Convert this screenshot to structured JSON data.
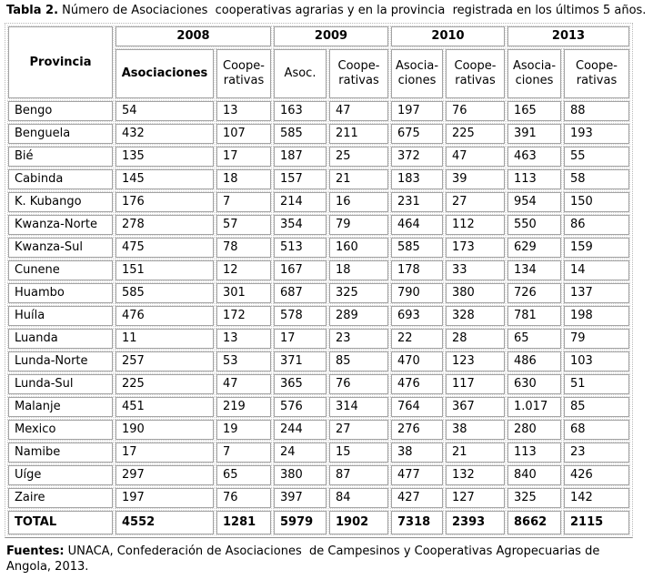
{
  "title": {
    "label": "Tabla 2.",
    "text": " Número de Asociaciones  cooperativas agrarias y en la provincia  registrada en los últimos 5 años."
  },
  "table": {
    "provincia_header": "Provincia",
    "year_groups": [
      {
        "year": "2008",
        "cols": [
          "Asociaciones",
          "Coope-rativas"
        ]
      },
      {
        "year": "2009",
        "cols": [
          "Asoc.",
          "Coope-rativas"
        ]
      },
      {
        "year": "2010",
        "cols": [
          "Asocia-ciones",
          "Coope-rativas"
        ]
      },
      {
        "year": "2013",
        "cols": [
          "Asocia-ciones",
          "Coope-rativas"
        ]
      }
    ],
    "rows": [
      {
        "name": "Bengo",
        "values": [
          "54",
          "13",
          "163",
          "47",
          "197",
          "76",
          "165",
          "88"
        ]
      },
      {
        "name": "Benguela",
        "values": [
          "432",
          "107",
          "585",
          "211",
          "675",
          "225",
          "391",
          "193"
        ]
      },
      {
        "name": "Bié",
        "values": [
          "135",
          "17",
          "187",
          "25",
          "372",
          "47",
          "463",
          "55"
        ]
      },
      {
        "name": "Cabinda",
        "values": [
          "145",
          "18",
          "157",
          "21",
          "183",
          "39",
          "113",
          "58"
        ]
      },
      {
        "name": "K. Kubango",
        "values": [
          "176",
          "7",
          "214",
          "16",
          "231",
          "27",
          "954",
          "150"
        ]
      },
      {
        "name": "Kwanza-Norte",
        "values": [
          "278",
          "57",
          "354",
          "79",
          "464",
          "112",
          "550",
          "86"
        ]
      },
      {
        "name": "Kwanza-Sul",
        "values": [
          "475",
          "78",
          "513",
          "160",
          "585",
          "173",
          "629",
          "159"
        ]
      },
      {
        "name": "Cunene",
        "values": [
          "151",
          "12",
          "167",
          "18",
          "178",
          "33",
          "134",
          "14"
        ]
      },
      {
        "name": "Huambo",
        "values": [
          "585",
          "301",
          "687",
          "325",
          "790",
          "380",
          "726",
          "137"
        ]
      },
      {
        "name": "Huíla",
        "values": [
          "476",
          "172",
          "578",
          "289",
          "693",
          "328",
          "781",
          "198"
        ]
      },
      {
        "name": "Luanda",
        "values": [
          "11",
          "13",
          "17",
          "23",
          "22",
          "28",
          "65",
          "79"
        ]
      },
      {
        "name": "Lunda-Norte",
        "values": [
          "257",
          "53",
          "371",
          "85",
          "470",
          "123",
          "486",
          "103"
        ]
      },
      {
        "name": "Lunda-Sul",
        "values": [
          "225",
          "47",
          "365",
          "76",
          "476",
          "117",
          "630",
          "51"
        ]
      },
      {
        "name": "Malanje",
        "values": [
          "451",
          "219",
          "576",
          "314",
          "764",
          "367",
          "1.017",
          "85"
        ]
      },
      {
        "name": "Mexico",
        "values": [
          "190",
          "19",
          "244",
          "27",
          "276",
          "38",
          "280",
          "68"
        ]
      },
      {
        "name": "Namibe",
        "values": [
          "17",
          "7",
          "24",
          "15",
          "38",
          "21",
          "113",
          "23"
        ]
      },
      {
        "name": "Uíge",
        "values": [
          "297",
          "65",
          "380",
          "87",
          "477",
          "132",
          "840",
          "426"
        ]
      },
      {
        "name": "Zaire",
        "values": [
          "197",
          "76",
          "397",
          "84",
          "427",
          "127",
          "325",
          "142"
        ]
      },
      {
        "name": "TOTAL",
        "values": [
          "4552",
          "1281",
          "5979",
          "1902",
          "7318",
          "2393",
          "8662",
          "2115"
        ],
        "bold": true
      }
    ]
  },
  "source": {
    "label": "Fuentes:",
    "text": " UNACA, Confederación de Asociaciones  de Campesinos y Cooperativas Agropecuarias de Angola, 2013."
  }
}
